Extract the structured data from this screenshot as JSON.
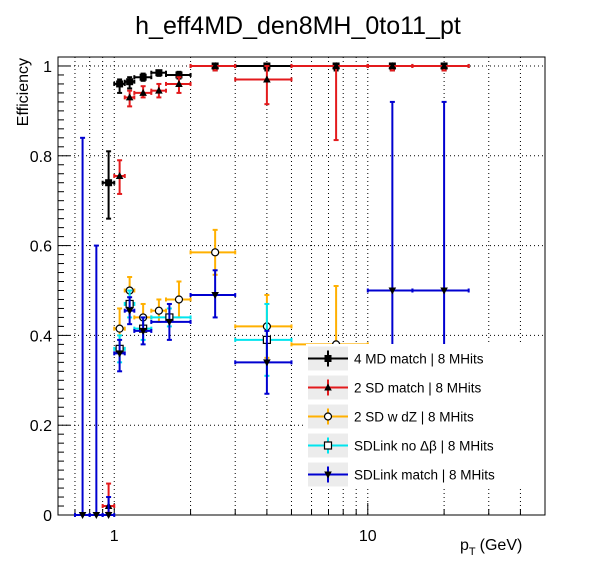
{
  "chart_data": {
    "type": "scatter",
    "title": "h_eff4MD_den8MH_0to11_pt",
    "xlabel_main": "p",
    "xlabel_sub": "T",
    "xlabel_unit": "(GeV)",
    "ylabel": "Efficiency",
    "xscale": "log",
    "xlim": [
      0.6,
      50
    ],
    "ylim": [
      0,
      1.02
    ],
    "grid": true,
    "legend_position": "bottom-right",
    "x_tick_labels": [
      {
        "value": 1,
        "label": "1"
      },
      {
        "value": 10,
        "label": "10"
      }
    ],
    "y_tick_labels": [
      {
        "value": 0,
        "label": "0"
      },
      {
        "value": 0.2,
        "label": "0.2"
      },
      {
        "value": 0.4,
        "label": "0.4"
      },
      {
        "value": 0.6,
        "label": "0.6"
      },
      {
        "value": 0.8,
        "label": "0.8"
      },
      {
        "value": 1,
        "label": "1"
      }
    ],
    "series": [
      {
        "name": "4 MD match | 8 MHits",
        "color": "#000000",
        "marker": "square",
        "points": [
          {
            "x": 0.95,
            "xlo": 0.9,
            "xhi": 1.0,
            "y": 0.74,
            "ylo": 0.66,
            "yhi": 0.81
          },
          {
            "x": 1.05,
            "xlo": 1.0,
            "xhi": 1.1,
            "y": 0.96,
            "ylo": 0.94,
            "yhi": 0.97
          },
          {
            "x": 1.15,
            "xlo": 1.1,
            "xhi": 1.2,
            "y": 0.965,
            "ylo": 0.95,
            "yhi": 0.975
          },
          {
            "x": 1.3,
            "xlo": 1.2,
            "xhi": 1.4,
            "y": 0.975,
            "ylo": 0.967,
            "yhi": 0.983
          },
          {
            "x": 1.5,
            "xlo": 1.4,
            "xhi": 1.6,
            "y": 0.985,
            "ylo": 0.978,
            "yhi": 0.99
          },
          {
            "x": 1.8,
            "xlo": 1.6,
            "xhi": 2.0,
            "y": 0.98,
            "ylo": 0.972,
            "yhi": 0.987
          },
          {
            "x": 2.5,
            "xlo": 2.0,
            "xhi": 3.0,
            "y": 1.0,
            "ylo": 0.99,
            "yhi": 1.0
          },
          {
            "x": 4.0,
            "xlo": 3.0,
            "xhi": 5.0,
            "y": 1.0,
            "ylo": 0.99,
            "yhi": 1.0
          },
          {
            "x": 7.5,
            "xlo": 5.0,
            "xhi": 10.0,
            "y": 1.0,
            "ylo": 0.99,
            "yhi": 1.0
          },
          {
            "x": 12.5,
            "xlo": 10.0,
            "xhi": 15.0,
            "y": 1.0,
            "ylo": 0.99,
            "yhi": 1.0
          },
          {
            "x": 20,
            "xlo": 15,
            "xhi": 25,
            "y": 1.0,
            "ylo": 0.99,
            "yhi": 1.0
          }
        ]
      },
      {
        "name": "2 SD match | 8 MHits",
        "color": "#e31a1c",
        "marker": "triangle-up",
        "points": [
          {
            "x": 0.95,
            "xlo": 0.9,
            "xhi": 1.0,
            "y": 0.02,
            "ylo": 0.005,
            "yhi": 0.07
          },
          {
            "x": 1.05,
            "xlo": 1.0,
            "xhi": 1.1,
            "y": 0.755,
            "ylo": 0.715,
            "yhi": 0.79
          },
          {
            "x": 1.15,
            "xlo": 1.1,
            "xhi": 1.2,
            "y": 0.93,
            "ylo": 0.91,
            "yhi": 0.945
          },
          {
            "x": 1.3,
            "xlo": 1.2,
            "xhi": 1.4,
            "y": 0.94,
            "ylo": 0.93,
            "yhi": 0.955
          },
          {
            "x": 1.5,
            "xlo": 1.4,
            "xhi": 1.6,
            "y": 0.945,
            "ylo": 0.93,
            "yhi": 0.96
          },
          {
            "x": 1.8,
            "xlo": 1.6,
            "xhi": 2.0,
            "y": 0.96,
            "ylo": 0.94,
            "yhi": 0.975
          },
          {
            "x": 2.5,
            "xlo": 2.0,
            "xhi": 3.0,
            "y": 1.0,
            "ylo": 0.99,
            "yhi": 1.0
          },
          {
            "x": 4.0,
            "xlo": 3.0,
            "xhi": 5.0,
            "y": 0.97,
            "ylo": 0.915,
            "yhi": 1.0
          },
          {
            "x": 7.5,
            "xlo": 5.0,
            "xhi": 10.0,
            "y": 1.0,
            "ylo": 0.835,
            "yhi": 1.0
          },
          {
            "x": 12.5,
            "xlo": 10.0,
            "xhi": 15.0,
            "y": 1.0,
            "ylo": 0.99,
            "yhi": 1.0
          },
          {
            "x": 20,
            "xlo": 15,
            "xhi": 25,
            "y": 1.0,
            "ylo": 0.99,
            "yhi": 1.0
          }
        ]
      },
      {
        "name": "2 SD w dZ | 8 MHits",
        "color": "#ffb000",
        "marker": "circle-open",
        "points": [
          {
            "x": 1.05,
            "xlo": 1.0,
            "xhi": 1.1,
            "y": 0.415,
            "ylo": 0.37,
            "yhi": 0.46
          },
          {
            "x": 1.15,
            "xlo": 1.1,
            "xhi": 1.2,
            "y": 0.5,
            "ylo": 0.47,
            "yhi": 0.53
          },
          {
            "x": 1.3,
            "xlo": 1.2,
            "xhi": 1.4,
            "y": 0.44,
            "ylo": 0.41,
            "yhi": 0.47
          },
          {
            "x": 1.5,
            "xlo": 1.4,
            "xhi": 1.6,
            "y": 0.455,
            "ylo": 0.43,
            "yhi": 0.48
          },
          {
            "x": 1.8,
            "xlo": 1.6,
            "xhi": 2.0,
            "y": 0.48,
            "ylo": 0.44,
            "yhi": 0.52
          },
          {
            "x": 2.5,
            "xlo": 2.0,
            "xhi": 3.0,
            "y": 0.585,
            "ylo": 0.535,
            "yhi": 0.635
          },
          {
            "x": 4.0,
            "xlo": 3.0,
            "xhi": 5.0,
            "y": 0.42,
            "ylo": 0.35,
            "yhi": 0.49
          },
          {
            "x": 7.5,
            "xlo": 5.0,
            "xhi": 10.0,
            "y": 0.38,
            "ylo": 0.28,
            "yhi": 0.51
          }
        ]
      },
      {
        "name": "SDLink no Δβ | 8 MHits",
        "color": "#00e5ee",
        "marker": "square-open",
        "points": [
          {
            "x": 1.05,
            "xlo": 1.0,
            "xhi": 1.1,
            "y": 0.37,
            "ylo": 0.34,
            "yhi": 0.4
          },
          {
            "x": 1.15,
            "xlo": 1.1,
            "xhi": 1.2,
            "y": 0.47,
            "ylo": 0.44,
            "yhi": 0.5
          },
          {
            "x": 1.3,
            "xlo": 1.2,
            "xhi": 1.4,
            "y": 0.415,
            "ylo": 0.39,
            "yhi": 0.44
          },
          {
            "x": 1.65,
            "xlo": 1.4,
            "xhi": 2.0,
            "y": 0.44,
            "ylo": 0.42,
            "yhi": 0.46
          },
          {
            "x": 4.0,
            "xlo": 3.0,
            "xhi": 5.0,
            "y": 0.39,
            "ylo": 0.31,
            "yhi": 0.47
          }
        ]
      },
      {
        "name": "SDLink match | 8 MHits",
        "color": "#0000d0",
        "marker": "triangle-down",
        "points": [
          {
            "x": 0.75,
            "xlo": 0.7,
            "xhi": 0.8,
            "y": 0.0,
            "ylo": 0.0,
            "yhi": 0.84
          },
          {
            "x": 0.85,
            "xlo": 0.8,
            "xhi": 0.9,
            "y": 0.0,
            "ylo": 0.0,
            "yhi": 0.6
          },
          {
            "x": 0.95,
            "xlo": 0.9,
            "xhi": 1.0,
            "y": 0.0,
            "ylo": 0.0,
            "yhi": 0.04
          },
          {
            "x": 1.05,
            "xlo": 1.0,
            "xhi": 1.1,
            "y": 0.36,
            "ylo": 0.32,
            "yhi": 0.39
          },
          {
            "x": 1.15,
            "xlo": 1.1,
            "xhi": 1.2,
            "y": 0.455,
            "ylo": 0.425,
            "yhi": 0.485
          },
          {
            "x": 1.3,
            "xlo": 1.2,
            "xhi": 1.4,
            "y": 0.41,
            "ylo": 0.38,
            "yhi": 0.44
          },
          {
            "x": 1.65,
            "xlo": 1.4,
            "xhi": 2.0,
            "y": 0.43,
            "ylo": 0.39,
            "yhi": 0.47
          },
          {
            "x": 2.5,
            "xlo": 2.0,
            "xhi": 3.0,
            "y": 0.49,
            "ylo": 0.44,
            "yhi": 0.545
          },
          {
            "x": 4.0,
            "xlo": 3.0,
            "xhi": 5.0,
            "y": 0.34,
            "ylo": 0.27,
            "yhi": 0.41
          },
          {
            "x": 12.5,
            "xlo": 10.0,
            "xhi": 15.0,
            "y": 0.5,
            "ylo": 0.08,
            "yhi": 0.92
          },
          {
            "x": 20,
            "xlo": 15,
            "xhi": 25,
            "y": 0.5,
            "ylo": 0.08,
            "yhi": 0.92
          }
        ]
      }
    ]
  }
}
